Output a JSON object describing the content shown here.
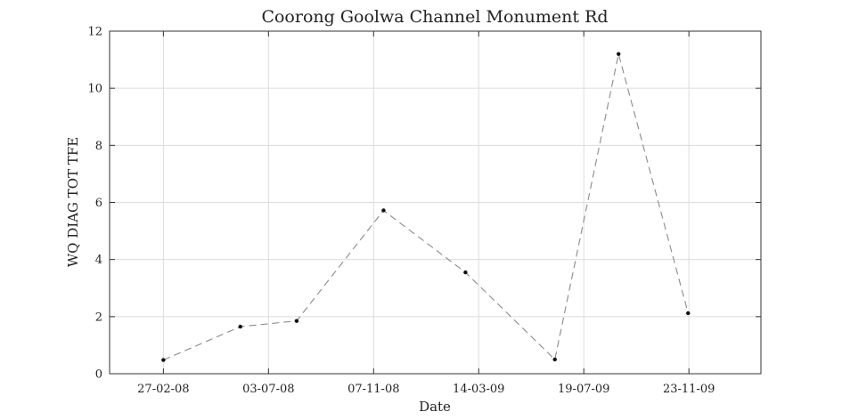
{
  "chart_data": {
    "type": "line",
    "title": "Coorong Goolwa Channel Monument Rd",
    "xlabel": "Date",
    "ylabel": "WQ DIAG TOT TFE",
    "x_tick_labels": [
      "27-02-08",
      "03-07-08",
      "07-11-08",
      "14-03-09",
      "19-07-09",
      "23-11-09"
    ],
    "x_tick_dates": [
      "2008-02-27",
      "2008-07-03",
      "2008-11-07",
      "2009-03-14",
      "2009-07-19",
      "2009-11-23"
    ],
    "xlim": [
      "2007-12-24",
      "2010-02-18"
    ],
    "y_ticks": [
      0,
      2,
      4,
      6,
      8,
      10,
      12
    ],
    "ylim": [
      0,
      12
    ],
    "grid": true,
    "series": [
      {
        "x": [
          "2008-02-27",
          "2008-05-30",
          "2008-08-06",
          "2008-11-19",
          "2009-02-26",
          "2009-06-14",
          "2009-08-30",
          "2009-11-22"
        ],
        "y": [
          0.48,
          1.65,
          1.85,
          5.72,
          3.55,
          0.5,
          11.2,
          2.12
        ]
      }
    ]
  }
}
